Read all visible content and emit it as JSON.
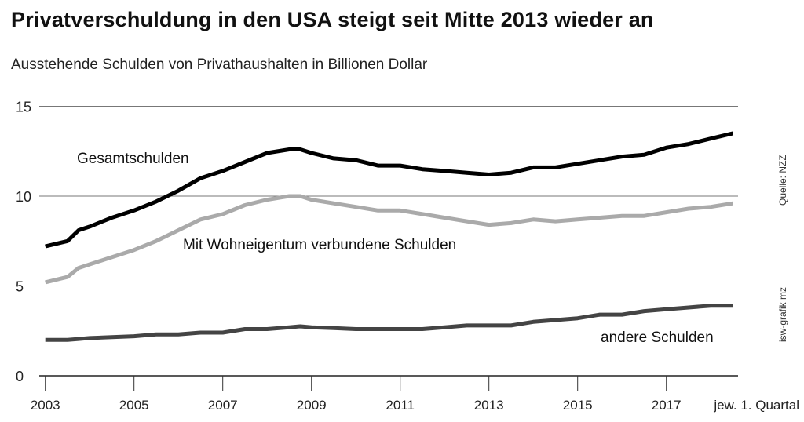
{
  "chart_data": {
    "type": "line",
    "title": "Privatverschuldung in den USA steigt seit Mitte 2013 wieder an",
    "subtitle": "Ausstehende Schulden von Privathaushalten in Billionen Dollar",
    "xlabel": "jew. 1. Quartal",
    "ylabel": "",
    "xlim": [
      2003,
      2018.5
    ],
    "ylim": [
      0,
      15
    ],
    "yticks": [
      0,
      5,
      10,
      15
    ],
    "xticks": [
      2003,
      2005,
      2007,
      2009,
      2011,
      2013,
      2015,
      2017
    ],
    "grid": "horizontal",
    "source": "Quelle: NZZ",
    "credit": "isw-grafik mz",
    "x": [
      2003,
      2003.5,
      2003.75,
      2004,
      2004.5,
      2005,
      2005.5,
      2006,
      2006.5,
      2007,
      2007.5,
      2008,
      2008.5,
      2008.75,
      2009,
      2009.5,
      2010,
      2010.5,
      2011,
      2011.5,
      2012,
      2012.5,
      2013,
      2013.5,
      2014,
      2014.5,
      2015,
      2015.5,
      2016,
      2016.5,
      2017,
      2017.5,
      2018,
      2018.5
    ],
    "series": [
      {
        "name": "Gesamtschulden",
        "color": "#000000",
        "values": [
          7.2,
          7.5,
          8.1,
          8.3,
          8.8,
          9.2,
          9.7,
          10.3,
          11.0,
          11.4,
          11.9,
          12.4,
          12.6,
          12.6,
          12.4,
          12.1,
          12.0,
          11.7,
          11.7,
          11.5,
          11.4,
          11.3,
          11.2,
          11.3,
          11.6,
          11.6,
          11.8,
          12.0,
          12.2,
          12.3,
          12.7,
          12.9,
          13.2,
          13.5
        ]
      },
      {
        "name": "Mit Wohneigentum verbundene Schulden",
        "color": "#aaaaaa",
        "values": [
          5.2,
          5.5,
          6.0,
          6.2,
          6.6,
          7.0,
          7.5,
          8.1,
          8.7,
          9.0,
          9.5,
          9.8,
          10.0,
          10.0,
          9.8,
          9.6,
          9.4,
          9.2,
          9.2,
          9.0,
          8.8,
          8.6,
          8.4,
          8.5,
          8.7,
          8.6,
          8.7,
          8.8,
          8.9,
          8.9,
          9.1,
          9.3,
          9.4,
          9.6
        ]
      },
      {
        "name": "andere Schulden",
        "color": "#444444",
        "values": [
          2.0,
          2.0,
          2.05,
          2.1,
          2.15,
          2.2,
          2.3,
          2.3,
          2.4,
          2.4,
          2.6,
          2.6,
          2.7,
          2.75,
          2.7,
          2.65,
          2.6,
          2.6,
          2.6,
          2.6,
          2.7,
          2.8,
          2.8,
          2.8,
          3.0,
          3.1,
          3.2,
          3.4,
          3.4,
          3.6,
          3.7,
          3.8,
          3.9,
          3.9
        ]
      }
    ]
  }
}
